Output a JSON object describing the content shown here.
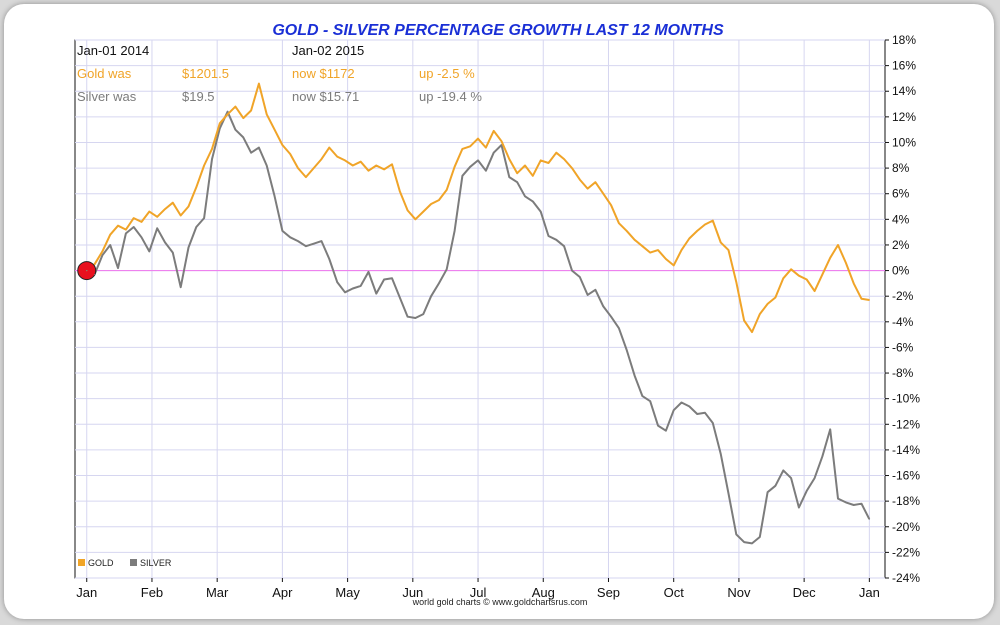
{
  "chart_data": {
    "type": "line",
    "title": "GOLD - SILVER PERCENTAGE GROWTH LAST 12 MONTHS",
    "xlabel": "",
    "ylabel": "",
    "y_ticks": [
      "18%",
      "16%",
      "14%",
      "12%",
      "10%",
      "8%",
      "6%",
      "4%",
      "2%",
      "0%",
      "-2%",
      "-4%",
      "-6%",
      "-8%",
      "-10%",
      "-12%",
      "-14%",
      "-16%",
      "-18%",
      "-20%",
      "-22%",
      "-24%"
    ],
    "x_ticks": [
      "Jan",
      "Feb",
      "Mar",
      "Apr",
      "May",
      "Jun",
      "Jul",
      "Aug",
      "Sep",
      "Oct",
      "Nov",
      "Dec",
      "Jan"
    ],
    "ylim": [
      -24,
      18
    ],
    "xlim": [
      2013.985,
      2015.02
    ],
    "grid": true,
    "legend_placement": "bottom-left",
    "legend": [
      "GOLD",
      "SILVER"
    ],
    "info": {
      "start_date": "Jan-01  2014",
      "end_date": "Jan-02  2015",
      "gold_was_label": "Gold was",
      "gold_was_value": "$1201.5",
      "gold_now": "now $1172",
      "gold_change": "up -2.5 %",
      "silver_was_label": "Silver was",
      "silver_was_value": "$19.5",
      "silver_now": "now $15.71",
      "silver_change": "up -19.4 %"
    },
    "credit": "world gold charts © www.goldchartsrus.com",
    "colors": {
      "gold": "#f0a428",
      "silver": "#7c7c7c",
      "zero_line": "#ee82ee",
      "marker": "#e8101e",
      "title": "#1a2fd6"
    },
    "series": [
      {
        "name": "GOLD",
        "x": [
          2014.0,
          2014.01,
          2014.02,
          2014.03,
          2014.04,
          2014.05,
          2014.06,
          2014.07,
          2014.08,
          2014.09,
          2014.1,
          2014.11,
          2014.12,
          2014.13,
          2014.14,
          2014.15,
          2014.16,
          2014.17,
          2014.18,
          2014.19,
          2014.2,
          2014.21,
          2014.22,
          2014.23,
          2014.24,
          2014.25,
          2014.26,
          2014.27,
          2014.28,
          2014.29,
          2014.3,
          2014.31,
          2014.32,
          2014.33,
          2014.34,
          2014.35,
          2014.36,
          2014.37,
          2014.38,
          2014.39,
          2014.4,
          2014.41,
          2014.42,
          2014.43,
          2014.44,
          2014.45,
          2014.46,
          2014.47,
          2014.48,
          2014.49,
          2014.5,
          2014.51,
          2014.52,
          2014.53,
          2014.54,
          2014.55,
          2014.56,
          2014.57,
          2014.58,
          2014.59,
          2014.6,
          2014.61,
          2014.62,
          2014.63,
          2014.64,
          2014.65,
          2014.66,
          2014.67,
          2014.68,
          2014.69,
          2014.7,
          2014.71,
          2014.72,
          2014.73,
          2014.74,
          2014.75,
          2014.76,
          2014.77,
          2014.78,
          2014.79,
          2014.8,
          2014.81,
          2014.82,
          2014.83,
          2014.84,
          2014.85,
          2014.86,
          2014.87,
          2014.88,
          2014.89,
          2014.9,
          2014.91,
          2014.92,
          2014.93,
          2014.94,
          2014.95,
          2014.96,
          2014.97,
          2014.98,
          2014.99,
          2015.0
        ],
        "values": [
          0.0,
          0.5,
          1.5,
          2.8,
          3.5,
          3.2,
          4.1,
          3.8,
          4.6,
          4.2,
          4.8,
          5.3,
          4.3,
          5.0,
          6.5,
          8.2,
          9.5,
          11.5,
          12.2,
          12.8,
          11.9,
          12.5,
          14.6,
          12.2,
          11.0,
          9.8,
          9.1,
          8.0,
          7.3,
          8.0,
          8.7,
          9.6,
          8.9,
          8.6,
          8.2,
          8.5,
          7.8,
          8.2,
          7.9,
          8.3,
          6.2,
          4.7,
          4.0,
          4.6,
          5.2,
          5.5,
          6.3,
          8.1,
          9.5,
          9.7,
          10.3,
          9.6,
          10.9,
          10.1,
          8.7,
          7.6,
          8.2,
          7.4,
          8.6,
          8.4,
          9.2,
          8.7,
          8.0,
          7.1,
          6.4,
          6.9,
          6.0,
          5.1,
          3.7,
          3.1,
          2.4,
          1.9,
          1.4,
          1.6,
          0.9,
          0.4,
          1.6,
          2.5,
          3.1,
          3.6,
          3.9,
          2.2,
          1.6,
          -0.9,
          -3.9,
          -4.8,
          -3.4,
          -2.6,
          -2.1,
          -0.6,
          0.1,
          -0.4,
          -0.7,
          -1.6,
          -0.3,
          1.0,
          2.0,
          0.6,
          -1.0,
          -2.2,
          -2.3
        ]
      },
      {
        "name": "SILVER",
        "x": [
          2014.0,
          2014.01,
          2014.02,
          2014.03,
          2014.04,
          2014.05,
          2014.06,
          2014.07,
          2014.08,
          2014.09,
          2014.1,
          2014.11,
          2014.12,
          2014.13,
          2014.14,
          2014.15,
          2014.16,
          2014.17,
          2014.18,
          2014.19,
          2014.2,
          2014.21,
          2014.22,
          2014.23,
          2014.24,
          2014.25,
          2014.26,
          2014.27,
          2014.28,
          2014.29,
          2014.3,
          2014.31,
          2014.32,
          2014.33,
          2014.34,
          2014.35,
          2014.36,
          2014.37,
          2014.38,
          2014.39,
          2014.4,
          2014.41,
          2014.42,
          2014.43,
          2014.44,
          2014.45,
          2014.46,
          2014.47,
          2014.48,
          2014.49,
          2014.5,
          2014.51,
          2014.52,
          2014.53,
          2014.54,
          2014.55,
          2014.56,
          2014.57,
          2014.58,
          2014.59,
          2014.6,
          2014.61,
          2014.62,
          2014.63,
          2014.64,
          2014.65,
          2014.66,
          2014.67,
          2014.68,
          2014.69,
          2014.7,
          2014.71,
          2014.72,
          2014.73,
          2014.74,
          2014.75,
          2014.76,
          2014.77,
          2014.78,
          2014.79,
          2014.8,
          2014.81,
          2014.82,
          2014.83,
          2014.84,
          2014.85,
          2014.86,
          2014.87,
          2014.88,
          2014.89,
          2014.9,
          2014.91,
          2014.92,
          2014.93,
          2014.94,
          2014.95,
          2014.96,
          2014.97,
          2014.98,
          2014.99,
          2015.0
        ],
        "values": [
          0.0,
          -0.3,
          1.2,
          2.0,
          0.2,
          2.9,
          3.4,
          2.6,
          1.5,
          3.3,
          2.2,
          1.4,
          -1.3,
          1.8,
          3.4,
          4.1,
          8.7,
          11.1,
          12.4,
          11.0,
          10.4,
          9.2,
          9.6,
          8.2,
          5.8,
          3.1,
          2.6,
          2.3,
          1.9,
          2.1,
          2.3,
          0.9,
          -0.9,
          -1.7,
          -1.4,
          -1.2,
          -0.1,
          -1.8,
          -0.7,
          -0.6,
          -2.1,
          -3.6,
          -3.7,
          -3.4,
          -2.0,
          -1.0,
          0.1,
          3.1,
          7.4,
          8.1,
          8.6,
          7.8,
          9.2,
          9.8,
          7.3,
          6.9,
          5.8,
          5.4,
          4.6,
          2.7,
          2.4,
          1.9,
          0.0,
          -0.5,
          -1.9,
          -1.5,
          -2.8,
          -3.6,
          -4.5,
          -6.2,
          -8.2,
          -9.8,
          -10.2,
          -12.1,
          -12.5,
          -10.9,
          -10.3,
          -10.6,
          -11.2,
          -11.1,
          -11.9,
          -14.3,
          -17.4,
          -20.6,
          -21.2,
          -21.3,
          -20.8,
          -17.3,
          -16.8,
          -15.6,
          -16.2,
          -18.5,
          -17.2,
          -16.2,
          -14.5,
          -12.4,
          -17.8,
          -18.1,
          -18.3,
          -18.2,
          -19.4
        ]
      }
    ]
  }
}
